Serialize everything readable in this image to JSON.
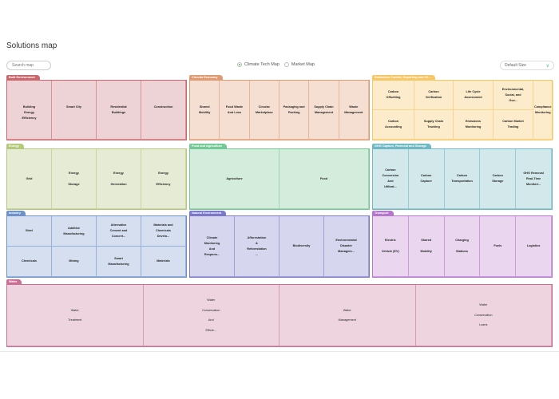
{
  "title": "Solutions map",
  "search": {
    "placeholder": "Search map"
  },
  "map_type": {
    "options": [
      "Climate Tech Map",
      "Market Map"
    ],
    "selected": "Climate Tech Map"
  },
  "size_select": {
    "value": "Default Size"
  },
  "panels": [
    {
      "id": "built",
      "name": "Built Environment",
      "color": "#c9676d",
      "bg": "#edd3d5",
      "cells": [
        "Building\nEnergy\nEfficiency",
        "Smart City",
        "Residential\nBuildings",
        "Construction"
      ]
    },
    {
      "id": "circular",
      "name": "Circular Economy",
      "color": "#e09a72",
      "bg": "#f5dfd2",
      "cells": [
        "Shared\nMobility",
        "Food Waste\nAnd Loss",
        "Circular\nMarketplace",
        "Packaging and\nPacking",
        "Supply Chain\nManagement",
        "Waste\nManagement"
      ]
    },
    {
      "id": "emissions",
      "name": "Emissions Control, Reporting and Of...",
      "color": "#f7c765",
      "bg": "#fdeccb",
      "cells": [
        "Carbon\nOffsetting",
        "Carbon\nVerification",
        "Life Cycle\nAssessment",
        "Environmental,\nSocial, and\nGov...",
        "Compliance\nMonitoring",
        "Carbon\nAccounting",
        "Supply Chain\nTracking",
        "Emissions\nMonitoring",
        "Carbon Market\nTrading"
      ]
    },
    {
      "id": "energy",
      "name": "Energy",
      "color": "#b5c97a",
      "bg": "#e5ebd4",
      "cells": [
        "Grid",
        "Energy\n\nStorage",
        "Energy\n\nGeneration",
        "Energy\n\nEfficiency"
      ]
    },
    {
      "id": "food",
      "name": "Food and Agriculture",
      "color": "#72c995",
      "bg": "#d4ecdc",
      "cells": [
        "Agriculture",
        "Food"
      ]
    },
    {
      "id": "ghg",
      "name": "GHG Capture, Removal and Storage",
      "color": "#6fb9c4",
      "bg": "#d3e8ea",
      "cells": [
        "Carbon\nConversion\nAnd\nUtilizat...",
        "Carbon\nCapture",
        "Carbon\nTransportation",
        "Carbon\nStorage",
        "GHG Removal\nReal-Time\nMonitori..."
      ]
    },
    {
      "id": "industry",
      "name": "Industry",
      "color": "#6c92c9",
      "bg": "#d5dff0",
      "cells": [
        "Steel",
        "Additive\nManufacturing",
        "Alternative\nCement and\nConcret...",
        "Materials and\nChemicals\nDevelo...",
        "Chemicals",
        "Mining",
        "Smart\nManufacturing",
        "Materials"
      ]
    },
    {
      "id": "natural",
      "name": "Natural Environment",
      "color": "#7b78cc",
      "bg": "#d6d6ef",
      "cells": [
        "Climate\nMonitoring\nAnd\nRespons...",
        "Afforestation\n&\nReforestation\n...",
        "Biodiversity",
        "Environmental\nDisaster\nManagem..."
      ]
    },
    {
      "id": "transport",
      "name": "Transport",
      "color": "#b576cc",
      "bg": "#ead6ee",
      "cells": [
        "Electric\n\nVehicle (EV)",
        "Shared\n\nMobility",
        "Charging\n\nStations",
        "Fuels",
        "Logistics"
      ]
    },
    {
      "id": "water",
      "name": "Water",
      "color": "#cc6f96",
      "bg": "#edd4df",
      "cells": [
        "Water\nTreatment",
        "Water\nConservation\nAnd\nEfficie...",
        "Water\nManagement",
        "Water\nConservation\nLoans"
      ]
    }
  ]
}
